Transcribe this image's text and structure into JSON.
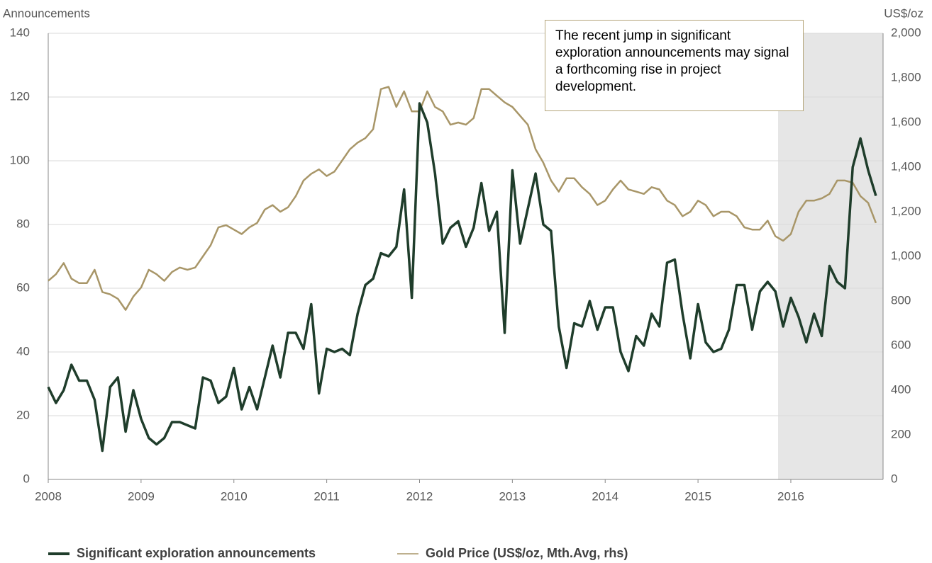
{
  "chart_data": {
    "type": "line",
    "y_label": "Announcements",
    "y2_label": "US$/oz",
    "annotation": "The recent jump in significant exploration announcements may signal a forthcoming rise in project development.",
    "categories": [
      "2008",
      null,
      null,
      null,
      null,
      null,
      null,
      null,
      null,
      null,
      null,
      null,
      "2009",
      null,
      null,
      null,
      null,
      null,
      null,
      null,
      null,
      null,
      null,
      null,
      "2010",
      null,
      null,
      null,
      null,
      null,
      null,
      null,
      null,
      null,
      null,
      null,
      "2011",
      null,
      null,
      null,
      null,
      null,
      null,
      null,
      null,
      null,
      null,
      null,
      "2012",
      null,
      null,
      null,
      null,
      null,
      null,
      null,
      null,
      null,
      null,
      null,
      "2013",
      null,
      null,
      null,
      null,
      null,
      null,
      null,
      null,
      null,
      null,
      null,
      "2014",
      null,
      null,
      null,
      null,
      null,
      null,
      null,
      null,
      null,
      null,
      null,
      "2015",
      null,
      null,
      null,
      null,
      null,
      null,
      null,
      null,
      null,
      null,
      null,
      "2016",
      null,
      null,
      null,
      null,
      null,
      null,
      null,
      null,
      null,
      null,
      null
    ],
    "series": [
      {
        "name": "Significant exploration announcements",
        "color": "#1f3d2b",
        "values": [
          29,
          24,
          28,
          36,
          31,
          31,
          25,
          9,
          29,
          32,
          15,
          28,
          19,
          13,
          11,
          13,
          18,
          18,
          17,
          16,
          32,
          31,
          24,
          26,
          35,
          22,
          29,
          22,
          32,
          42,
          32,
          46,
          46,
          41,
          55,
          27,
          41,
          40,
          41,
          39,
          52,
          61,
          63,
          71,
          70,
          73,
          91,
          57,
          118,
          112,
          96,
          74,
          79,
          81,
          73,
          79,
          93,
          78,
          84,
          46,
          97,
          74,
          85,
          96,
          80,
          78,
          48,
          35,
          49,
          48,
          56,
          47,
          54,
          54,
          40,
          34,
          45,
          42,
          52,
          48,
          68,
          69,
          52,
          38,
          55,
          43,
          40,
          41,
          47,
          61,
          61,
          47,
          59,
          62,
          59,
          48,
          57,
          51,
          43,
          52,
          45,
          67,
          62,
          60,
          98,
          107,
          97,
          89
        ]
      },
      {
        "name": "Gold Price (US$/oz, Mth.Avg, rhs)",
        "color": "#a89668",
        "axis": "y2",
        "values": [
          890,
          920,
          970,
          900,
          880,
          880,
          940,
          840,
          830,
          810,
          760,
          820,
          860,
          940,
          920,
          890,
          930,
          950,
          940,
          950,
          1000,
          1050,
          1130,
          1140,
          1120,
          1100,
          1130,
          1150,
          1210,
          1230,
          1200,
          1220,
          1270,
          1340,
          1370,
          1390,
          1360,
          1380,
          1430,
          1480,
          1510,
          1530,
          1570,
          1750,
          1760,
          1670,
          1740,
          1650,
          1650,
          1740,
          1670,
          1650,
          1590,
          1600,
          1590,
          1620,
          1750,
          1750,
          1720,
          1690,
          1670,
          1630,
          1590,
          1480,
          1420,
          1340,
          1290,
          1350,
          1350,
          1310,
          1280,
          1230,
          1250,
          1300,
          1340,
          1300,
          1290,
          1280,
          1310,
          1300,
          1250,
          1230,
          1180,
          1200,
          1250,
          1230,
          1180,
          1200,
          1200,
          1180,
          1130,
          1120,
          1120,
          1160,
          1090,
          1070,
          1100,
          1200,
          1250,
          1250,
          1260,
          1280,
          1340,
          1340,
          1330,
          1270,
          1240,
          1150
        ]
      }
    ],
    "ylim": [
      0,
      140
    ],
    "yticks": [
      0,
      20,
      40,
      60,
      80,
      100,
      120,
      140
    ],
    "y2lim": [
      0,
      2000
    ],
    "y2ticks": [
      0,
      200,
      400,
      600,
      800,
      {
        "value": 1000,
        "label": "1,000"
      },
      {
        "value": 1200,
        "label": "1,200"
      },
      {
        "value": 1400,
        "label": "1,400"
      },
      {
        "value": 1600,
        "label": "1,600"
      },
      {
        "value": 1800,
        "label": "1,800"
      },
      {
        "value": 2000,
        "label": "2,000"
      }
    ],
    "grid": true
  }
}
